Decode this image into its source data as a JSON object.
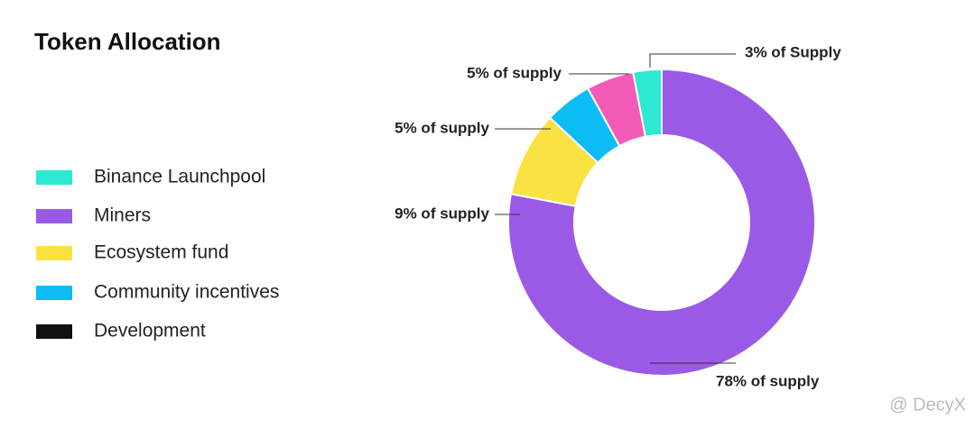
{
  "chart_data": {
    "type": "donut",
    "title": "Token Allocation",
    "categories": [
      "Binance Launchpool",
      "Miners",
      "Ecosystem fund",
      "Community incentives",
      "Development"
    ],
    "values": [
      3,
      78,
      9,
      5,
      5
    ],
    "value_labels": [
      "3% of Supply",
      "78% of supply",
      "9% of supply",
      "5% of supply",
      "5% of supply"
    ],
    "colors": [
      "#2de8d3",
      "#9a5ae6",
      "#fbe243",
      "#0cbdf5",
      "#f25bb8"
    ],
    "legend_colors": [
      "#2de8d3",
      "#9a5ae6",
      "#fbe243",
      "#0cbdf5",
      "#111111"
    ],
    "watermark": "@ DecyX"
  }
}
